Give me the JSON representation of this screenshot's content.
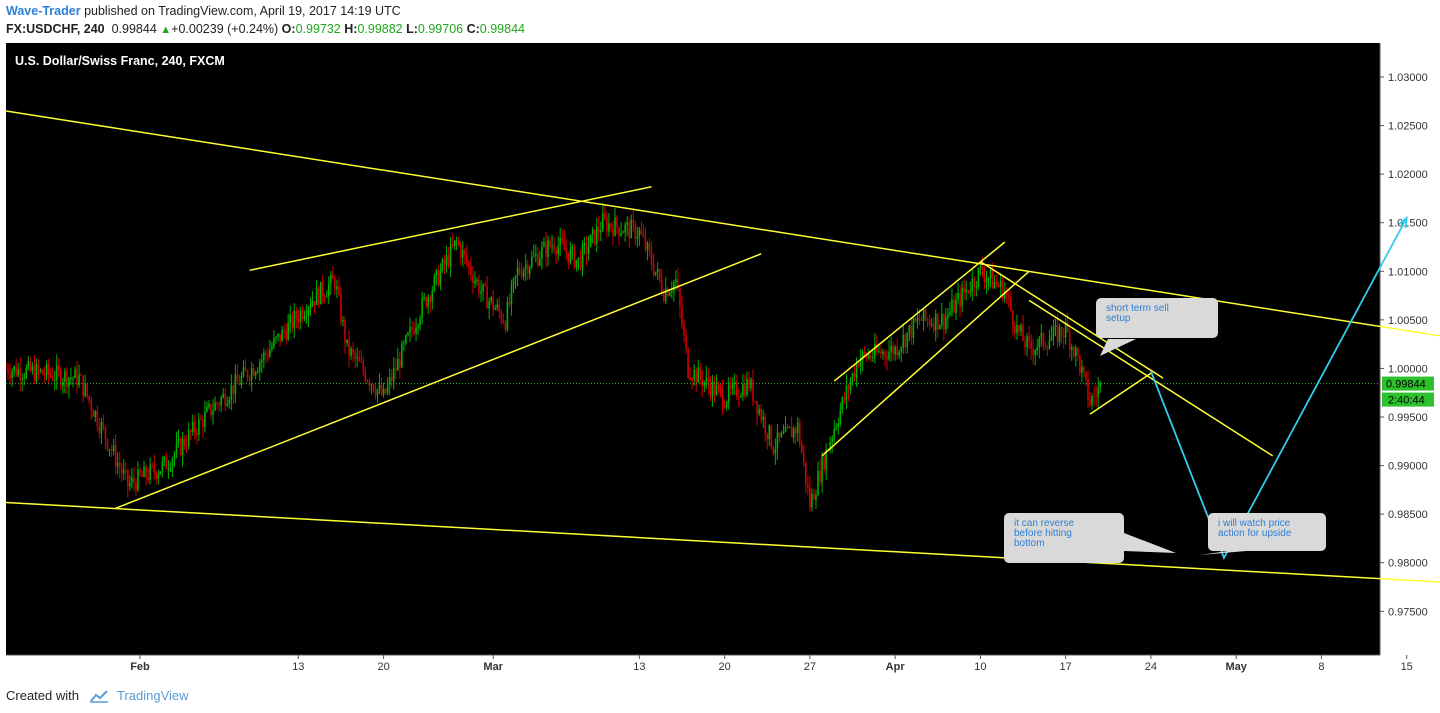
{
  "header": {
    "author": "Wave-Trader",
    "published": "published on TradingView.com, April 19, 2017 14:19 UTC",
    "symbol": "FX:USDCHF, 240",
    "last": "0.99844",
    "change": "+0.00239 (+0.24%)",
    "o_label": "O:",
    "o": "0.99732",
    "h_label": "H:",
    "h": "0.99882",
    "l_label": "L:",
    "l": "0.99706",
    "c_label": "C:",
    "c": "0.99844"
  },
  "chart_data": {
    "type": "candlestick",
    "title": "U.S. Dollar/Swiss Franc, 240, FXCM",
    "y_ticks": [
      "1.03000",
      "1.02500",
      "1.02000",
      "1.01500",
      "1.01000",
      "1.00500",
      "1.00000",
      "0.99500",
      "0.99000",
      "0.98500",
      "0.98000",
      "0.97500"
    ],
    "x_ticks": [
      "Feb",
      "13",
      "20",
      "Mar",
      "13",
      "20",
      "27",
      "Apr",
      "10",
      "17",
      "24",
      "May",
      "8",
      "15"
    ],
    "ylim": [
      0.9705,
      1.0335
    ],
    "current_price": "0.99844",
    "countdown": "2:40:44",
    "price_path_by_date": [
      [
        "2017-01-20",
        1.0
      ],
      [
        "2017-01-26",
        0.999
      ],
      [
        "2017-01-30",
        0.988
      ],
      [
        "2017-02-02",
        0.99
      ],
      [
        "2017-02-06",
        0.996
      ],
      [
        "2017-02-10",
        1.001
      ],
      [
        "2017-02-14",
        1.007
      ],
      [
        "2017-02-16",
        1.009
      ],
      [
        "2017-02-17",
        1.002
      ],
      [
        "2017-02-20",
        0.997
      ],
      [
        "2017-02-23",
        1.006
      ],
      [
        "2017-02-26",
        1.013
      ],
      [
        "2017-02-28",
        1.008
      ],
      [
        "2017-03-02",
        1.005
      ],
      [
        "2017-03-03",
        1.01
      ],
      [
        "2017-03-06",
        1.013
      ],
      [
        "2017-03-08",
        1.011
      ],
      [
        "2017-03-10",
        1.015
      ],
      [
        "2017-03-13",
        1.014
      ],
      [
        "2017-03-15",
        1.008
      ],
      [
        "2017-03-16",
        1.009
      ],
      [
        "2017-03-17",
        1.0
      ],
      [
        "2017-03-20",
        0.997
      ],
      [
        "2017-03-22",
        0.9985
      ],
      [
        "2017-03-24",
        0.992
      ],
      [
        "2017-03-26",
        0.994
      ],
      [
        "2017-03-27",
        0.986
      ],
      [
        "2017-03-29",
        0.994
      ],
      [
        "2017-03-31",
        1.001
      ],
      [
        "2017-04-03",
        1.002
      ],
      [
        "2017-04-05",
        1.005
      ],
      [
        "2017-04-07",
        1.005
      ],
      [
        "2017-04-10",
        1.01
      ],
      [
        "2017-04-12",
        1.008
      ],
      [
        "2017-04-13",
        1.004
      ],
      [
        "2017-04-14",
        1.002
      ],
      [
        "2017-04-17",
        1.004
      ],
      [
        "2017-04-18",
        1.001
      ],
      [
        "2017-04-19",
        0.9965
      ],
      [
        "2017-04-20",
        0.9984
      ]
    ],
    "trendlines": [
      {
        "name": "upper-channel-line",
        "points": [
          [
            "2017-01-20",
            1.0265
          ],
          [
            "2017-05-18",
            1.0033
          ]
        ]
      },
      {
        "name": "lower-channel-line",
        "points": [
          [
            "2017-01-20",
            0.9862
          ],
          [
            "2017-05-18",
            0.978
          ]
        ]
      },
      {
        "name": "wedge-upper-line",
        "points": [
          [
            "2017-02-09",
            1.0101
          ],
          [
            "2017-03-14",
            1.0187
          ]
        ]
      },
      {
        "name": "wedge-lower-line",
        "points": [
          [
            "2017-01-29",
            0.9856
          ],
          [
            "2017-03-23",
            1.0118
          ]
        ]
      },
      {
        "name": "rise-channel-top",
        "points": [
          [
            "2017-03-29",
            0.9987
          ],
          [
            "2017-04-12",
            1.013
          ]
        ]
      },
      {
        "name": "rise-channel-bottom",
        "points": [
          [
            "2017-03-28",
            0.991
          ],
          [
            "2017-04-14",
            1.01
          ]
        ]
      },
      {
        "name": "down-line-1",
        "points": [
          [
            "2017-04-10",
            1.011
          ],
          [
            "2017-04-25",
            0.999
          ]
        ]
      },
      {
        "name": "down-line-2",
        "points": [
          [
            "2017-04-14",
            1.007
          ],
          [
            "2017-05-04",
            0.991
          ]
        ]
      },
      {
        "name": "pullback-line",
        "points": [
          [
            "2017-04-19",
            0.9953
          ],
          [
            "2017-04-24",
            0.9995
          ]
        ]
      }
    ],
    "projection": [
      [
        "2017-04-24",
        0.9997
      ],
      [
        "2017-04-30",
        0.9805
      ],
      [
        "2017-05-15",
        1.0155
      ]
    ],
    "annotations": [
      {
        "text": [
          "short term sell",
          "setup"
        ]
      },
      {
        "text": [
          "it can reverse",
          "before hitting",
          "bottom"
        ]
      },
      {
        "text": [
          "i will watch price",
          "action for upside"
        ]
      }
    ]
  },
  "footer": {
    "created_with": "Created with",
    "brand": "TradingView"
  },
  "colors": {
    "background": "#000000",
    "trendline": "#ffff33",
    "projection": "#33ccee",
    "up_candle": "#00b000",
    "down_candle": "#d00000",
    "callout": "#d9d9d9",
    "callout_text": "#2f7fd6"
  }
}
